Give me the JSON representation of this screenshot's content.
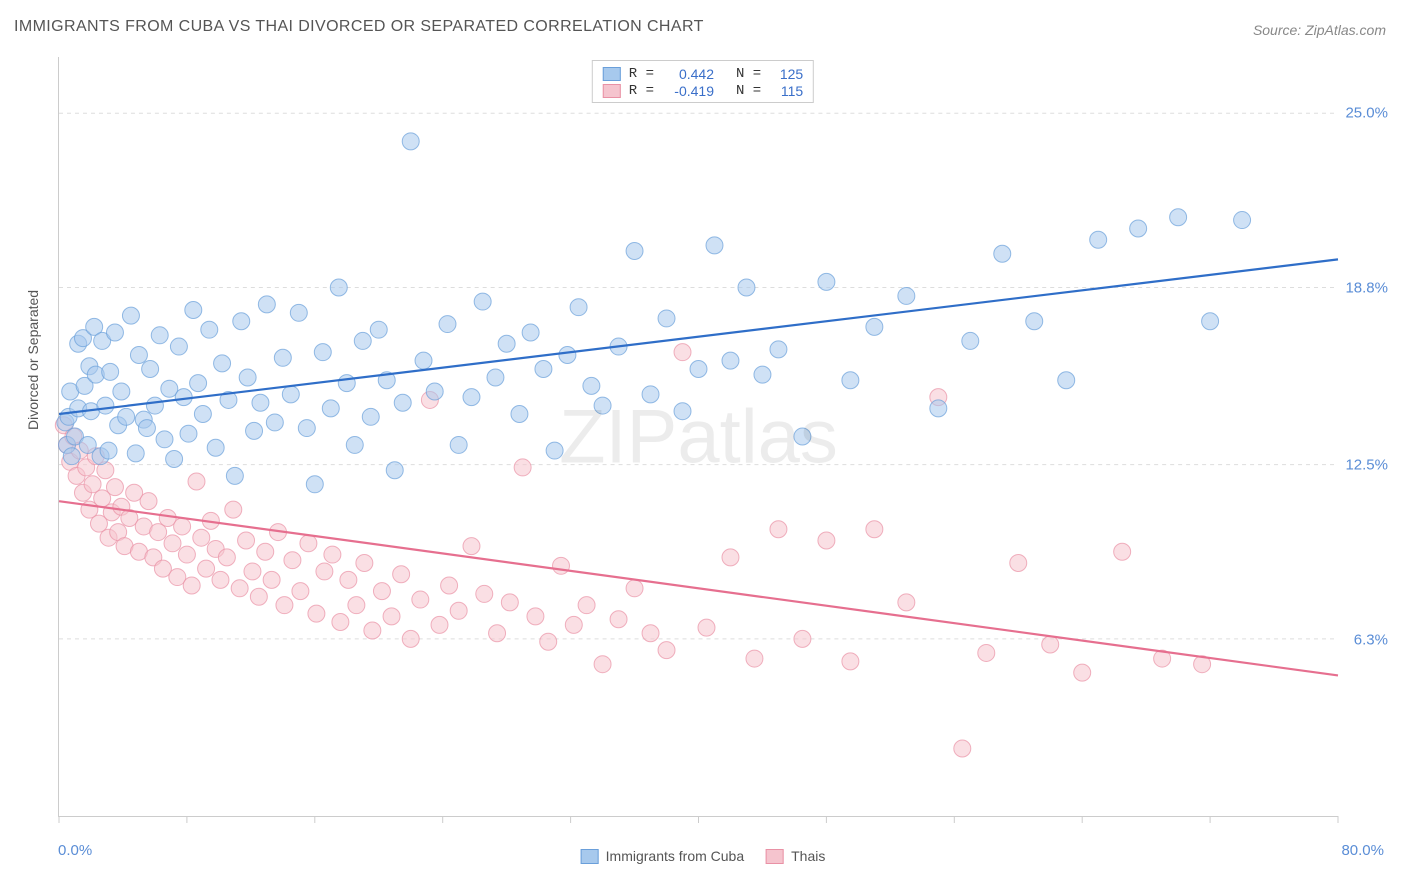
{
  "title": "IMMIGRANTS FROM CUBA VS THAI DIVORCED OR SEPARATED CORRELATION CHART",
  "source": "Source: ZipAtlas.com",
  "watermark": "ZIPatlas",
  "chart": {
    "type": "scatter",
    "background_color": "#ffffff",
    "grid_color": "#dddddd",
    "axis_color": "#cccccc",
    "ylabel": "Divorced or Separated",
    "ylabel_fontsize": 14,
    "xlim": [
      0,
      80
    ],
    "ylim": [
      0,
      27
    ],
    "y_ticks": [
      6.3,
      12.5,
      18.8,
      25.0
    ],
    "y_tick_labels": [
      "6.3%",
      "12.5%",
      "18.8%",
      "25.0%"
    ],
    "y_tick_color": "#5a8dd6",
    "x_tick_positions": [
      0,
      8,
      16,
      24,
      32,
      40,
      48,
      56,
      64,
      72,
      80
    ],
    "x_min_label": "0.0%",
    "x_max_label": "80.0%",
    "x_label_color": "#5a8dd6",
    "marker_radius": 8.5,
    "marker_opacity": 0.55,
    "line_width": 2.2,
    "series": [
      {
        "name": "Immigrants from Cuba",
        "legend_label": "Immigrants from Cuba",
        "marker_fill": "#a7c9ed",
        "marker_stroke": "#6a9fda",
        "line_color": "#2f6ec8",
        "R": "0.442",
        "N": "125",
        "trend": {
          "x1": 0,
          "y1": 14.3,
          "x2": 80,
          "y2": 19.8
        },
        "points": [
          [
            0.4,
            14.0
          ],
          [
            0.6,
            14.2
          ],
          [
            0.5,
            13.2
          ],
          [
            0.8,
            12.8
          ],
          [
            0.7,
            15.1
          ],
          [
            1.0,
            13.5
          ],
          [
            1.2,
            16.8
          ],
          [
            1.2,
            14.5
          ],
          [
            1.5,
            17.0
          ],
          [
            1.6,
            15.3
          ],
          [
            1.8,
            13.2
          ],
          [
            1.9,
            16.0
          ],
          [
            2.0,
            14.4
          ],
          [
            2.2,
            17.4
          ],
          [
            2.3,
            15.7
          ],
          [
            2.6,
            12.8
          ],
          [
            2.7,
            16.9
          ],
          [
            2.9,
            14.6
          ],
          [
            3.1,
            13.0
          ],
          [
            3.2,
            15.8
          ],
          [
            3.5,
            17.2
          ],
          [
            3.7,
            13.9
          ],
          [
            3.9,
            15.1
          ],
          [
            4.2,
            14.2
          ],
          [
            4.5,
            17.8
          ],
          [
            4.8,
            12.9
          ],
          [
            5.0,
            16.4
          ],
          [
            5.3,
            14.1
          ],
          [
            5.5,
            13.8
          ],
          [
            5.7,
            15.9
          ],
          [
            6.0,
            14.6
          ],
          [
            6.3,
            17.1
          ],
          [
            6.6,
            13.4
          ],
          [
            6.9,
            15.2
          ],
          [
            7.2,
            12.7
          ],
          [
            7.5,
            16.7
          ],
          [
            7.8,
            14.9
          ],
          [
            8.1,
            13.6
          ],
          [
            8.4,
            18.0
          ],
          [
            8.7,
            15.4
          ],
          [
            9.0,
            14.3
          ],
          [
            9.4,
            17.3
          ],
          [
            9.8,
            13.1
          ],
          [
            10.2,
            16.1
          ],
          [
            10.6,
            14.8
          ],
          [
            11.0,
            12.1
          ],
          [
            11.4,
            17.6
          ],
          [
            11.8,
            15.6
          ],
          [
            12.2,
            13.7
          ],
          [
            12.6,
            14.7
          ],
          [
            13.0,
            18.2
          ],
          [
            13.5,
            14.0
          ],
          [
            14.0,
            16.3
          ],
          [
            14.5,
            15.0
          ],
          [
            15.0,
            17.9
          ],
          [
            15.5,
            13.8
          ],
          [
            16.0,
            11.8
          ],
          [
            16.5,
            16.5
          ],
          [
            17.0,
            14.5
          ],
          [
            17.5,
            18.8
          ],
          [
            18.0,
            15.4
          ],
          [
            18.5,
            13.2
          ],
          [
            19.0,
            16.9
          ],
          [
            19.5,
            14.2
          ],
          [
            20.0,
            17.3
          ],
          [
            20.5,
            15.5
          ],
          [
            21.0,
            12.3
          ],
          [
            21.5,
            14.7
          ],
          [
            22.0,
            24.0
          ],
          [
            22.8,
            16.2
          ],
          [
            23.5,
            15.1
          ],
          [
            24.3,
            17.5
          ],
          [
            25.0,
            13.2
          ],
          [
            25.8,
            14.9
          ],
          [
            26.5,
            18.3
          ],
          [
            27.3,
            15.6
          ],
          [
            28.0,
            16.8
          ],
          [
            28.8,
            14.3
          ],
          [
            29.5,
            17.2
          ],
          [
            30.3,
            15.9
          ],
          [
            31.0,
            13.0
          ],
          [
            31.8,
            16.4
          ],
          [
            32.5,
            18.1
          ],
          [
            33.3,
            15.3
          ],
          [
            34.0,
            14.6
          ],
          [
            35.0,
            16.7
          ],
          [
            36.0,
            20.1
          ],
          [
            37.0,
            15.0
          ],
          [
            38.0,
            17.7
          ],
          [
            39.0,
            14.4
          ],
          [
            40.0,
            15.9
          ],
          [
            41.0,
            20.3
          ],
          [
            42.0,
            16.2
          ],
          [
            43.0,
            18.8
          ],
          [
            44.0,
            15.7
          ],
          [
            45.0,
            16.6
          ],
          [
            46.5,
            13.5
          ],
          [
            48.0,
            19.0
          ],
          [
            49.5,
            15.5
          ],
          [
            51.0,
            17.4
          ],
          [
            53.0,
            18.5
          ],
          [
            55.0,
            14.5
          ],
          [
            57.0,
            16.9
          ],
          [
            59.0,
            20.0
          ],
          [
            61.0,
            17.6
          ],
          [
            63.0,
            15.5
          ],
          [
            65.0,
            20.5
          ],
          [
            67.5,
            20.9
          ],
          [
            70.0,
            21.3
          ],
          [
            72.0,
            17.6
          ],
          [
            74.0,
            21.2
          ]
        ]
      },
      {
        "name": "Thais",
        "legend_label": "Thais",
        "marker_fill": "#f5c4ce",
        "marker_stroke": "#e991a5",
        "line_color": "#e66f8f",
        "R": "-0.419",
        "N": "115",
        "trend": {
          "x1": 0,
          "y1": 11.2,
          "x2": 80,
          "y2": 5.0
        },
        "points": [
          [
            0.3,
            13.9
          ],
          [
            0.5,
            13.2
          ],
          [
            0.7,
            12.6
          ],
          [
            0.9,
            13.5
          ],
          [
            1.1,
            12.1
          ],
          [
            1.3,
            13.0
          ],
          [
            1.5,
            11.5
          ],
          [
            1.7,
            12.4
          ],
          [
            1.9,
            10.9
          ],
          [
            2.1,
            11.8
          ],
          [
            2.3,
            12.8
          ],
          [
            2.5,
            10.4
          ],
          [
            2.7,
            11.3
          ],
          [
            2.9,
            12.3
          ],
          [
            3.1,
            9.9
          ],
          [
            3.3,
            10.8
          ],
          [
            3.5,
            11.7
          ],
          [
            3.7,
            10.1
          ],
          [
            3.9,
            11.0
          ],
          [
            4.1,
            9.6
          ],
          [
            4.4,
            10.6
          ],
          [
            4.7,
            11.5
          ],
          [
            5.0,
            9.4
          ],
          [
            5.3,
            10.3
          ],
          [
            5.6,
            11.2
          ],
          [
            5.9,
            9.2
          ],
          [
            6.2,
            10.1
          ],
          [
            6.5,
            8.8
          ],
          [
            6.8,
            10.6
          ],
          [
            7.1,
            9.7
          ],
          [
            7.4,
            8.5
          ],
          [
            7.7,
            10.3
          ],
          [
            8.0,
            9.3
          ],
          [
            8.3,
            8.2
          ],
          [
            8.6,
            11.9
          ],
          [
            8.9,
            9.9
          ],
          [
            9.2,
            8.8
          ],
          [
            9.5,
            10.5
          ],
          [
            9.8,
            9.5
          ],
          [
            10.1,
            8.4
          ],
          [
            10.5,
            9.2
          ],
          [
            10.9,
            10.9
          ],
          [
            11.3,
            8.1
          ],
          [
            11.7,
            9.8
          ],
          [
            12.1,
            8.7
          ],
          [
            12.5,
            7.8
          ],
          [
            12.9,
            9.4
          ],
          [
            13.3,
            8.4
          ],
          [
            13.7,
            10.1
          ],
          [
            14.1,
            7.5
          ],
          [
            14.6,
            9.1
          ],
          [
            15.1,
            8.0
          ],
          [
            15.6,
            9.7
          ],
          [
            16.1,
            7.2
          ],
          [
            16.6,
            8.7
          ],
          [
            17.1,
            9.3
          ],
          [
            17.6,
            6.9
          ],
          [
            18.1,
            8.4
          ],
          [
            18.6,
            7.5
          ],
          [
            19.1,
            9.0
          ],
          [
            19.6,
            6.6
          ],
          [
            20.2,
            8.0
          ],
          [
            20.8,
            7.1
          ],
          [
            21.4,
            8.6
          ],
          [
            22.0,
            6.3
          ],
          [
            22.6,
            7.7
          ],
          [
            23.2,
            14.8
          ],
          [
            23.8,
            6.8
          ],
          [
            24.4,
            8.2
          ],
          [
            25.0,
            7.3
          ],
          [
            25.8,
            9.6
          ],
          [
            26.6,
            7.9
          ],
          [
            27.4,
            6.5
          ],
          [
            28.2,
            7.6
          ],
          [
            29.0,
            12.4
          ],
          [
            29.8,
            7.1
          ],
          [
            30.6,
            6.2
          ],
          [
            31.4,
            8.9
          ],
          [
            32.2,
            6.8
          ],
          [
            33.0,
            7.5
          ],
          [
            34.0,
            5.4
          ],
          [
            35.0,
            7.0
          ],
          [
            36.0,
            8.1
          ],
          [
            37.0,
            6.5
          ],
          [
            38.0,
            5.9
          ],
          [
            39.0,
            16.5
          ],
          [
            40.5,
            6.7
          ],
          [
            42.0,
            9.2
          ],
          [
            43.5,
            5.6
          ],
          [
            45.0,
            10.2
          ],
          [
            46.5,
            6.3
          ],
          [
            48.0,
            9.8
          ],
          [
            49.5,
            5.5
          ],
          [
            51.0,
            10.2
          ],
          [
            53.0,
            7.6
          ],
          [
            55.0,
            14.9
          ],
          [
            56.5,
            2.4
          ],
          [
            58.0,
            5.8
          ],
          [
            60.0,
            9.0
          ],
          [
            62.0,
            6.1
          ],
          [
            64.0,
            5.1
          ],
          [
            66.5,
            9.4
          ],
          [
            69.0,
            5.6
          ],
          [
            71.5,
            5.4
          ]
        ]
      }
    ]
  },
  "legend_top": {
    "R_label": "R =",
    "N_label": "N ="
  }
}
